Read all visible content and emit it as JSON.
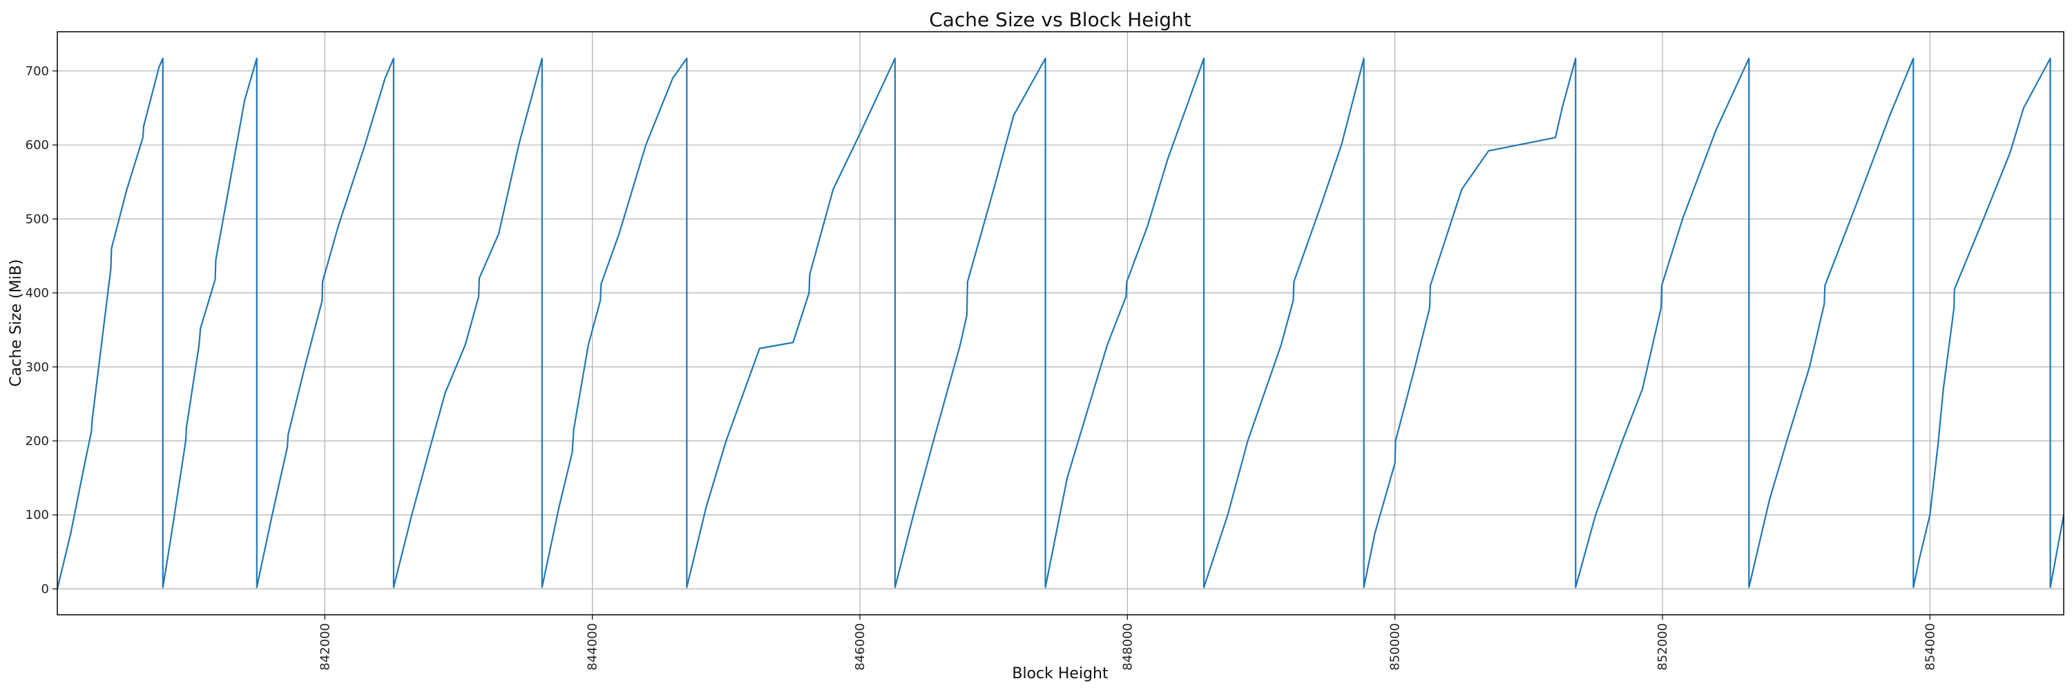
{
  "chart_data": {
    "type": "line",
    "title": "Cache Size vs Block Height",
    "xlabel": "Block Height",
    "ylabel": "Cache Size (MiB)",
    "xlim": [
      840000,
      855000
    ],
    "ylim": [
      -35,
      753
    ],
    "xticks": [
      842000,
      844000,
      846000,
      848000,
      850000,
      852000,
      854000
    ],
    "yticks": [
      0,
      100,
      200,
      300,
      400,
      500,
      600,
      700
    ],
    "grid": true,
    "color": "#1f77b4",
    "points": [
      [
        840000,
        0
      ],
      [
        840100,
        75
      ],
      [
        840200,
        165
      ],
      [
        840255,
        213
      ],
      [
        840260,
        228
      ],
      [
        840400,
        433
      ],
      [
        840405,
        460
      ],
      [
        840520,
        540
      ],
      [
        840640,
        610
      ],
      [
        840645,
        625
      ],
      [
        840760,
        705
      ],
      [
        840789,
        717
      ],
      [
        840789,
        2
      ],
      [
        840850,
        70
      ],
      [
        840960,
        200
      ],
      [
        840965,
        218
      ],
      [
        841060,
        330
      ],
      [
        841070,
        352
      ],
      [
        841180,
        418
      ],
      [
        841185,
        445
      ],
      [
        841300,
        560
      ],
      [
        841400,
        660
      ],
      [
        841491,
        717
      ],
      [
        841491,
        2
      ],
      [
        841600,
        95
      ],
      [
        841720,
        192
      ],
      [
        841725,
        208
      ],
      [
        841850,
        300
      ],
      [
        841980,
        390
      ],
      [
        841983,
        415
      ],
      [
        842100,
        490
      ],
      [
        842300,
        600
      ],
      [
        842450,
        690
      ],
      [
        842514,
        717
      ],
      [
        842514,
        2
      ],
      [
        842650,
        100
      ],
      [
        842800,
        200
      ],
      [
        842900,
        265
      ],
      [
        843050,
        330
      ],
      [
        843150,
        395
      ],
      [
        843155,
        420
      ],
      [
        843300,
        480
      ],
      [
        843450,
        600
      ],
      [
        843624,
        717
      ],
      [
        843624,
        2
      ],
      [
        843750,
        110
      ],
      [
        843850,
        185
      ],
      [
        843860,
        215
      ],
      [
        843970,
        330
      ],
      [
        844060,
        390
      ],
      [
        844065,
        412
      ],
      [
        844200,
        480
      ],
      [
        844400,
        600
      ],
      [
        844600,
        690
      ],
      [
        844706,
        717
      ],
      [
        844706,
        2
      ],
      [
        844850,
        110
      ],
      [
        845000,
        200
      ],
      [
        845250,
        325
      ],
      [
        845500,
        333
      ],
      [
        845620,
        400
      ],
      [
        845625,
        425
      ],
      [
        845800,
        540
      ],
      [
        846000,
        615
      ],
      [
        846263,
        717
      ],
      [
        846263,
        2
      ],
      [
        846400,
        100
      ],
      [
        846550,
        200
      ],
      [
        846750,
        330
      ],
      [
        846800,
        370
      ],
      [
        846805,
        415
      ],
      [
        847000,
        540
      ],
      [
        847150,
        640
      ],
      [
        847387,
        717
      ],
      [
        847387,
        2
      ],
      [
        847550,
        150
      ],
      [
        847650,
        210
      ],
      [
        847850,
        330
      ],
      [
        847990,
        395
      ],
      [
        847995,
        415
      ],
      [
        848150,
        490
      ],
      [
        848300,
        580
      ],
      [
        848572,
        717
      ],
      [
        848572,
        2
      ],
      [
        848750,
        100
      ],
      [
        848900,
        200
      ],
      [
        849150,
        330
      ],
      [
        849240,
        390
      ],
      [
        849245,
        415
      ],
      [
        849450,
        520
      ],
      [
        849600,
        600
      ],
      [
        849768,
        717
      ],
      [
        849768,
        2
      ],
      [
        849850,
        75
      ],
      [
        850000,
        170
      ],
      [
        850005,
        200
      ],
      [
        850150,
        300
      ],
      [
        850260,
        380
      ],
      [
        850265,
        410
      ],
      [
        850500,
        540
      ],
      [
        850700,
        592
      ],
      [
        851200,
        610
      ],
      [
        851250,
        650
      ],
      [
        851351,
        717
      ],
      [
        851351,
        2
      ],
      [
        851500,
        100
      ],
      [
        851700,
        200
      ],
      [
        851850,
        270
      ],
      [
        851990,
        380
      ],
      [
        851995,
        410
      ],
      [
        852150,
        500
      ],
      [
        852400,
        620
      ],
      [
        852647,
        717
      ],
      [
        852647,
        2
      ],
      [
        852800,
        120
      ],
      [
        852930,
        200
      ],
      [
        853100,
        300
      ],
      [
        853210,
        385
      ],
      [
        853215,
        410
      ],
      [
        853450,
        520
      ],
      [
        853700,
        640
      ],
      [
        853876,
        717
      ],
      [
        853876,
        2
      ],
      [
        853920,
        40
      ],
      [
        854000,
        100
      ],
      [
        854060,
        195
      ],
      [
        854100,
        270
      ],
      [
        854180,
        380
      ],
      [
        854183,
        405
      ],
      [
        854400,
        500
      ],
      [
        854600,
        590
      ],
      [
        854700,
        650
      ],
      [
        854900,
        717
      ],
      [
        854900,
        2
      ],
      [
        855000,
        100
      ]
    ]
  }
}
